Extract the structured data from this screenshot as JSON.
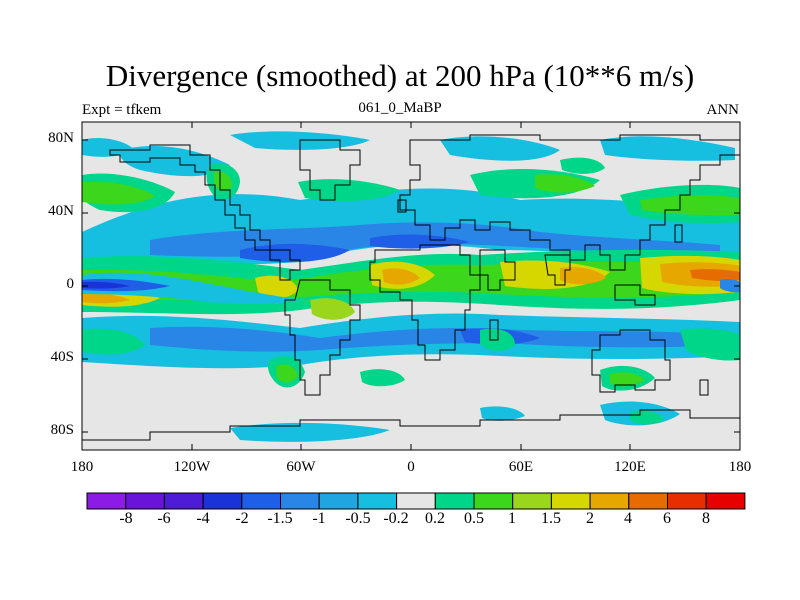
{
  "title": "Divergence (smoothed) at 200 hPa (10**6 m/s)",
  "left_subtitle": "Expt = tfkem",
  "center_subtitle": "061_0_MaBP",
  "right_subtitle": "ANN",
  "lat_labels": [
    "80N",
    "40N",
    "0",
    "40S",
    "80S"
  ],
  "lon_labels": [
    "180",
    "120W",
    "60W",
    "0",
    "60E",
    "120E",
    "180"
  ],
  "colorbar": {
    "labels": [
      "-8",
      "-6",
      "-4",
      "-2",
      "-1.5",
      "-1",
      "-0.5",
      "-0.2",
      "0.2",
      "0.5",
      "1",
      "1.5",
      "2",
      "4",
      "6",
      "8"
    ],
    "colors": [
      "#8c1be6",
      "#6a14d9",
      "#4e1bd6",
      "#1a33d9",
      "#1f5ee6",
      "#2a86e6",
      "#1fa6e0",
      "#16bfe0",
      "#e6e6e6",
      "#00d68a",
      "#3cd61c",
      "#99d61c",
      "#d6d600",
      "#e6a800",
      "#e66b00",
      "#e62e00",
      "#e60000"
    ]
  },
  "map_background": "#e6e6e6"
}
